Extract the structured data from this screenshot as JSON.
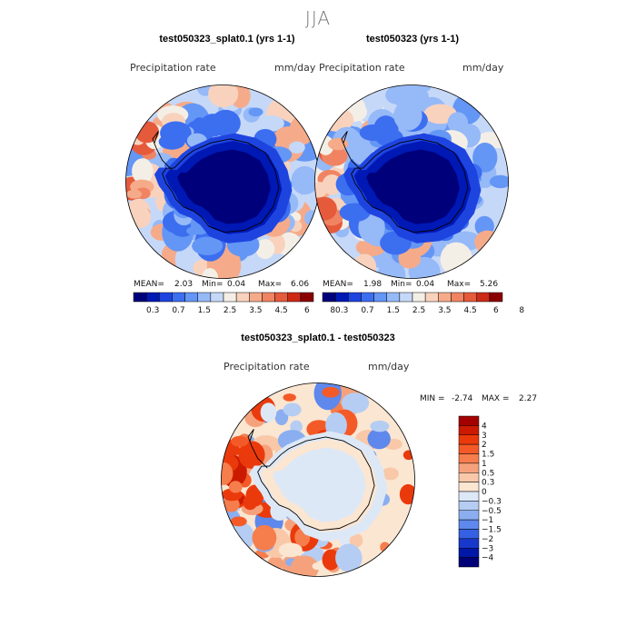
{
  "season": "JJA",
  "panels": [
    {
      "title": "test050323_splat0.1 (yrs 1-1)",
      "variable": "Precipitation rate",
      "units": "mm/day",
      "mean_label": "MEAN=",
      "mean": "2.03",
      "min_label": "Min=",
      "min": "0.04",
      "max_label": "Max=",
      "max": "6.06"
    },
    {
      "title": "test050323 (yrs 1-1)",
      "variable": "Precipitation rate",
      "units": "mm/day",
      "mean_label": "MEAN=",
      "mean": "1.98",
      "min_label": "Min=",
      "min": "0.04",
      "max_label": "Max=",
      "max": "5.26"
    }
  ],
  "diff_panel": {
    "title": "test050323_splat0.1 - test050323",
    "variable": "Precipitation rate",
    "units": "mm/day",
    "min_label": "MIN =",
    "min": "-2.74",
    "max_label": "MAX =",
    "max": "2.27"
  },
  "chart_data": [
    {
      "type": "heatmap",
      "projection": "south-polar-stereographic",
      "title": "test050323_splat0.1 (yrs 1-1)",
      "variable": "Precipitation rate",
      "units": "mm/day",
      "mean": 2.03,
      "min": 0.04,
      "max": 6.06,
      "colorbar_ticks": [
        "0.3",
        "0.7",
        "1.5",
        "2.5",
        "3.5",
        "4.5",
        "6",
        "8"
      ],
      "colors": [
        "#00007a",
        "#0018b4",
        "#1e44e0",
        "#3c6ef0",
        "#6496f5",
        "#96b9f7",
        "#c6d8f8",
        "#f4efe6",
        "#f8d2bd",
        "#f5ab8a",
        "#f08462",
        "#e65a3c",
        "#cc2a16",
        "#8a0000"
      ]
    },
    {
      "type": "heatmap",
      "projection": "south-polar-stereographic",
      "title": "test050323 (yrs 1-1)",
      "variable": "Precipitation rate",
      "units": "mm/day",
      "mean": 1.98,
      "min": 0.04,
      "max": 5.26,
      "colorbar_ticks": [
        "0.3",
        "0.7",
        "1.5",
        "2.5",
        "3.5",
        "4.5",
        "6",
        "8"
      ],
      "colors": [
        "#00007a",
        "#0018b4",
        "#1e44e0",
        "#3c6ef0",
        "#6496f5",
        "#96b9f7",
        "#c6d8f8",
        "#f4efe6",
        "#f8d2bd",
        "#f5ab8a",
        "#f08462",
        "#e65a3c",
        "#cc2a16",
        "#8a0000"
      ]
    },
    {
      "type": "heatmap",
      "projection": "south-polar-stereographic",
      "title": "test050323_splat0.1 - test050323",
      "variable": "Precipitation rate",
      "units": "mm/day",
      "min": -2.74,
      "max": 2.27,
      "colorbar_ticks": [
        "4",
        "3",
        "2",
        "1.5",
        "1",
        "0.5",
        "0.3",
        "0",
        "−0.3",
        "−0.5",
        "−1",
        "−1.5",
        "−2",
        "−3",
        "−4"
      ],
      "colors": [
        "#a50000",
        "#cc1a00",
        "#ea3a0c",
        "#f45a28",
        "#f67d4c",
        "#f5a27c",
        "#f8c8a8",
        "#fbe6d2",
        "#dde8f7",
        "#b5cdf3",
        "#8aaef0",
        "#5e88ec",
        "#3560e4",
        "#1838cc",
        "#0018a8",
        "#000078"
      ]
    }
  ]
}
